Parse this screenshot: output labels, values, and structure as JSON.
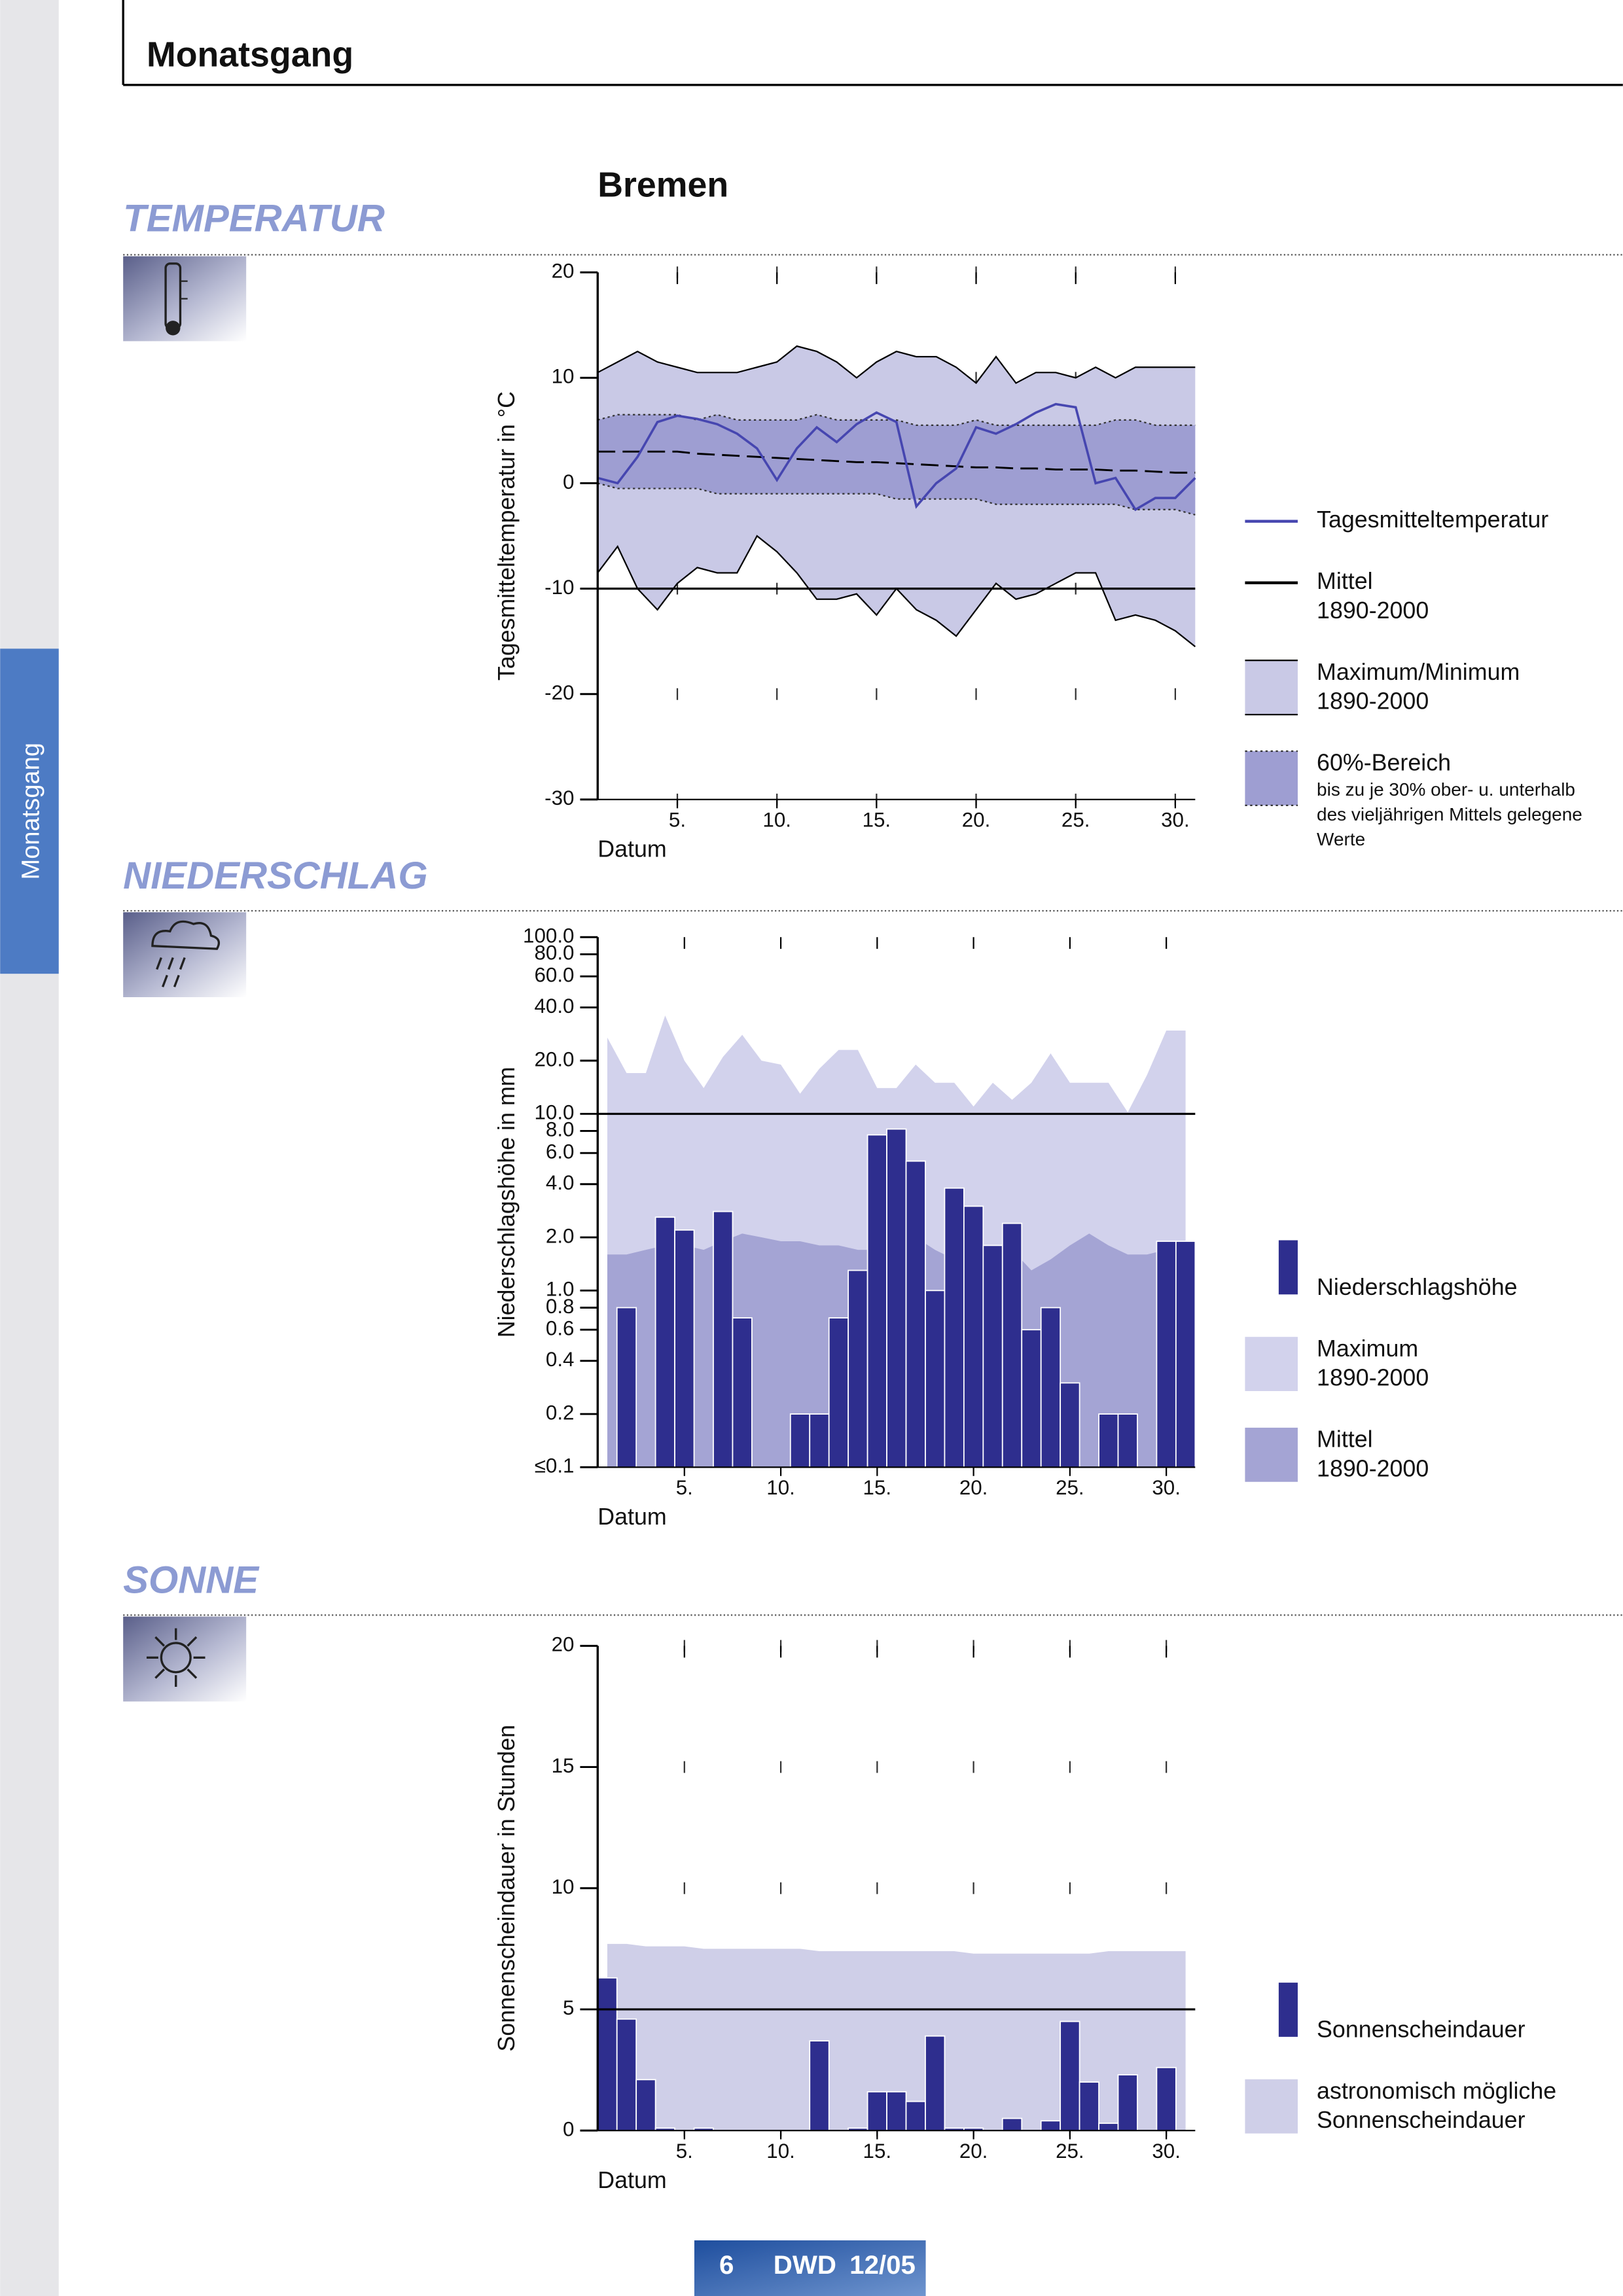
{
  "header": "Monatsgang",
  "side_tab": "Monatsgang",
  "station": "Bremen",
  "sections": [
    "TEMPERATUR",
    "NIEDERSCHLAG",
    "SONNE"
  ],
  "footer": {
    "page": 6,
    "publisher": "DWD",
    "issue": "12/05"
  },
  "chart_data": [
    {
      "type": "line",
      "y_label": "Tagesmitteltemperatur in °C",
      "x_label": "Datum",
      "x": [
        1,
        2,
        3,
        4,
        5,
        6,
        7,
        8,
        9,
        10,
        11,
        12,
        13,
        14,
        15,
        16,
        17,
        18,
        19,
        20,
        21,
        22,
        23,
        24,
        25,
        26,
        27,
        28,
        29,
        30,
        31
      ],
      "xlim": [
        1,
        31
      ],
      "xticks": [
        {
          "value": 5,
          "label": "5."
        },
        {
          "value": 10,
          "label": "10."
        },
        {
          "value": 15,
          "label": "15."
        },
        {
          "value": 20,
          "label": "20."
        },
        {
          "value": 25,
          "label": "25."
        },
        {
          "value": 30,
          "label": "30."
        }
      ],
      "ylim": [
        -30,
        20
      ],
      "yticks": [
        -30,
        -20,
        -10,
        0,
        10,
        20
      ],
      "hline": -10,
      "grid": true,
      "legend": "right",
      "series": [
        {
          "name": "Tagesmitteltemperatur",
          "type": "line",
          "line_style": "solid",
          "color": "#4646b0",
          "values": [
            0.5,
            0,
            2.5,
            5.8,
            6.4,
            6.1,
            5.6,
            4.7,
            3.3,
            0.3,
            3.3,
            5.3,
            3.9,
            5.6,
            6.7,
            5.8,
            -2.2,
            0,
            1.4,
            5.3,
            4.7,
            5.6,
            6.7,
            7.5,
            7.2,
            0,
            0.5,
            -2.5,
            -1.4,
            -1.4,
            0.5
          ]
        },
        {
          "name": "Mittel",
          "note": [
            "1890-2000"
          ],
          "type": "line",
          "line_style": "dashed",
          "color": "#000000",
          "values": [
            3,
            3,
            3,
            3,
            3,
            2.8,
            2.7,
            2.6,
            2.5,
            2.4,
            2.3,
            2.2,
            2.1,
            2,
            2,
            1.9,
            1.8,
            1.7,
            1.6,
            1.5,
            1.5,
            1.4,
            1.4,
            1.3,
            1.3,
            1.3,
            1.2,
            1.2,
            1.1,
            1,
            1
          ]
        },
        {
          "name": "Maximum/Minimum",
          "note": [
            "1890-2000"
          ],
          "type": "band",
          "color": "#c9c9e6",
          "edge_color": "#000000",
          "edge_style": "solid",
          "values": [
            10.5,
            11.5,
            12.5,
            11.5,
            11,
            10.5,
            10.5,
            10.5,
            11,
            11.5,
            13,
            12.5,
            11.5,
            10,
            11.5,
            12.5,
            12,
            12,
            11,
            9.5,
            12,
            9.5,
            10.5,
            10.5,
            10,
            11,
            10,
            11,
            11,
            11,
            11
          ],
          "lower": [
            -8.5,
            -6,
            -10,
            -12,
            -9.5,
            -8,
            -8.5,
            -8.5,
            -5,
            -6.5,
            -8.5,
            -11,
            -11,
            -10.5,
            -12.5,
            -10,
            -12,
            -13,
            -14.5,
            -12,
            -9.5,
            -11,
            -10.5,
            -9.5,
            -8.5,
            -8.5,
            -13,
            -12.5,
            -13,
            -14,
            -15.5
          ]
        },
        {
          "name": "60%-Bereich",
          "note": [
            "bis zu je 30% ober- u. unterhalb",
            "des vieljährigen Mittels gelegene",
            "Werte"
          ],
          "type": "band",
          "color": "#9e9ed2",
          "edge_color": "#333333",
          "edge_style": "dotted",
          "values": [
            6,
            6.5,
            6.5,
            6.5,
            6.5,
            6,
            6.5,
            6,
            6,
            6,
            6,
            6.5,
            6,
            6,
            6,
            6,
            5.5,
            5.5,
            5.5,
            6,
            5.5,
            5.5,
            5.5,
            5.5,
            5.5,
            5.5,
            6,
            6,
            5.5,
            5.5,
            5.5
          ],
          "lower": [
            0,
            -0.5,
            -0.5,
            -0.5,
            -0.5,
            -0.5,
            -1,
            -1,
            -1,
            -1,
            -1,
            -1,
            -1,
            -1,
            -1,
            -1.5,
            -1.5,
            -1.5,
            -1.5,
            -1.5,
            -2,
            -2,
            -2,
            -2,
            -2,
            -2,
            -2,
            -2.5,
            -2.5,
            -2.5,
            -3
          ]
        }
      ]
    },
    {
      "type": "bar",
      "log_y": true,
      "y_label": "Niederschlagshöhe in mm",
      "x_label": "Datum",
      "x": [
        1,
        2,
        3,
        4,
        5,
        6,
        7,
        8,
        9,
        10,
        11,
        12,
        13,
        14,
        15,
        16,
        17,
        18,
        19,
        20,
        21,
        22,
        23,
        24,
        25,
        26,
        27,
        28,
        29,
        30,
        31
      ],
      "xlim": [
        0.5,
        31.5
      ],
      "xticks": [
        {
          "value": 5,
          "label": "5."
        },
        {
          "value": 10,
          "label": "10."
        },
        {
          "value": 15,
          "label": "15."
        },
        {
          "value": 20,
          "label": "20."
        },
        {
          "value": 25,
          "label": "25."
        },
        {
          "value": 30,
          "label": "30."
        }
      ],
      "ylim": [
        0.1,
        100
      ],
      "yticks": [
        {
          "value": 0.1,
          "label": "≤0.1"
        },
        {
          "value": 0.2,
          "label": "0.2"
        },
        {
          "value": 0.4,
          "label": "0.4"
        },
        {
          "value": 0.6,
          "label": "0.6"
        },
        {
          "value": 0.8,
          "label": "0.8"
        },
        {
          "value": 1,
          "label": "1.0"
        },
        {
          "value": 2,
          "label": "2.0"
        },
        {
          "value": 4,
          "label": "4.0"
        },
        {
          "value": 6,
          "label": "6.0"
        },
        {
          "value": 8,
          "label": "8.0"
        },
        {
          "value": 10,
          "label": "10.0"
        },
        {
          "value": 20,
          "label": "20.0"
        },
        {
          "value": 40,
          "label": "40.0"
        },
        {
          "value": 60,
          "label": "60.0"
        },
        {
          "value": 80,
          "label": "80.0"
        },
        {
          "value": 100,
          "label": "100.0"
        }
      ],
      "hline": 10,
      "grid": false,
      "legend": "right",
      "series": [
        {
          "name": "Niederschlagshöhe",
          "type": "bar",
          "color": "#2e2e8e",
          "values": [
            0,
            0.8,
            0,
            2.6,
            2.2,
            0,
            2.8,
            0.7,
            0,
            0,
            0.2,
            0.2,
            0.7,
            1.3,
            7.6,
            8.2,
            5.4,
            1.0,
            3.8,
            3.0,
            1.8,
            2.4,
            0.6,
            0.8,
            0.3,
            0,
            0.2,
            0.2,
            0,
            1.9,
            1.9
          ]
        },
        {
          "name": "Maximum",
          "note": [
            "1890-2000"
          ],
          "type": "area",
          "color": "#d2d2ec",
          "values": [
            27,
            17,
            17,
            36,
            20,
            14,
            21,
            28,
            20,
            19,
            13,
            18,
            23,
            23,
            14,
            14,
            19,
            15,
            15,
            11,
            15,
            12,
            15,
            22,
            15,
            15,
            15,
            10.2,
            16.6,
            29.6,
            29.6
          ]
        },
        {
          "name": "Mittel",
          "note": [
            "1890-2000"
          ],
          "type": "area",
          "color": "#a4a4d4",
          "values": [
            1.6,
            1.6,
            1.7,
            1.8,
            1.8,
            1.7,
            1.9,
            2.1,
            2.0,
            1.9,
            1.9,
            1.8,
            1.8,
            1.7,
            1.7,
            1.9,
            2.0,
            1.7,
            1.5,
            1.5,
            1.6,
            1.7,
            1.3,
            1.5,
            1.8,
            2.1,
            1.8,
            1.6,
            1.6,
            1.7,
            1.8
          ]
        }
      ]
    },
    {
      "type": "bar",
      "y_label": "Sonnenscheindauer in Stunden",
      "x_label": "Datum",
      "x": [
        1,
        2,
        3,
        4,
        5,
        6,
        7,
        8,
        9,
        10,
        11,
        12,
        13,
        14,
        15,
        16,
        17,
        18,
        19,
        20,
        21,
        22,
        23,
        24,
        25,
        26,
        27,
        28,
        29,
        30,
        31
      ],
      "xlim": [
        0.5,
        31.5
      ],
      "xticks": [
        {
          "value": 5,
          "label": "5."
        },
        {
          "value": 10,
          "label": "10."
        },
        {
          "value": 15,
          "label": "15."
        },
        {
          "value": 20,
          "label": "20."
        },
        {
          "value": 25,
          "label": "25."
        },
        {
          "value": 30,
          "label": "30."
        }
      ],
      "ylim": [
        0,
        20
      ],
      "yticks": [
        0,
        5,
        10,
        15,
        20
      ],
      "hline": 5,
      "grid": true,
      "legend": "right",
      "series": [
        {
          "name": "Sonnenscheindauer",
          "type": "bar",
          "color": "#2e2e8e",
          "values": [
            6.3,
            4.6,
            2.1,
            0.1,
            0,
            0.1,
            0,
            0,
            0,
            0,
            0,
            3.7,
            0,
            0.1,
            1.6,
            1.6,
            1.2,
            3.9,
            0.1,
            0.1,
            0,
            0.5,
            0,
            0.4,
            4.5,
            2.0,
            0.3,
            2.3,
            0,
            2.6,
            0
          ]
        },
        {
          "name": "astronomisch mögliche",
          "note": [
            "Sonnenscheindauer"
          ],
          "type": "area",
          "color": "#cfcfe8",
          "values": [
            7.7,
            7.7,
            7.6,
            7.6,
            7.6,
            7.5,
            7.5,
            7.5,
            7.5,
            7.5,
            7.5,
            7.4,
            7.4,
            7.4,
            7.4,
            7.4,
            7.4,
            7.4,
            7.4,
            7.3,
            7.3,
            7.3,
            7.3,
            7.3,
            7.3,
            7.3,
            7.4,
            7.4,
            7.4,
            7.4,
            7.4
          ]
        }
      ]
    }
  ]
}
